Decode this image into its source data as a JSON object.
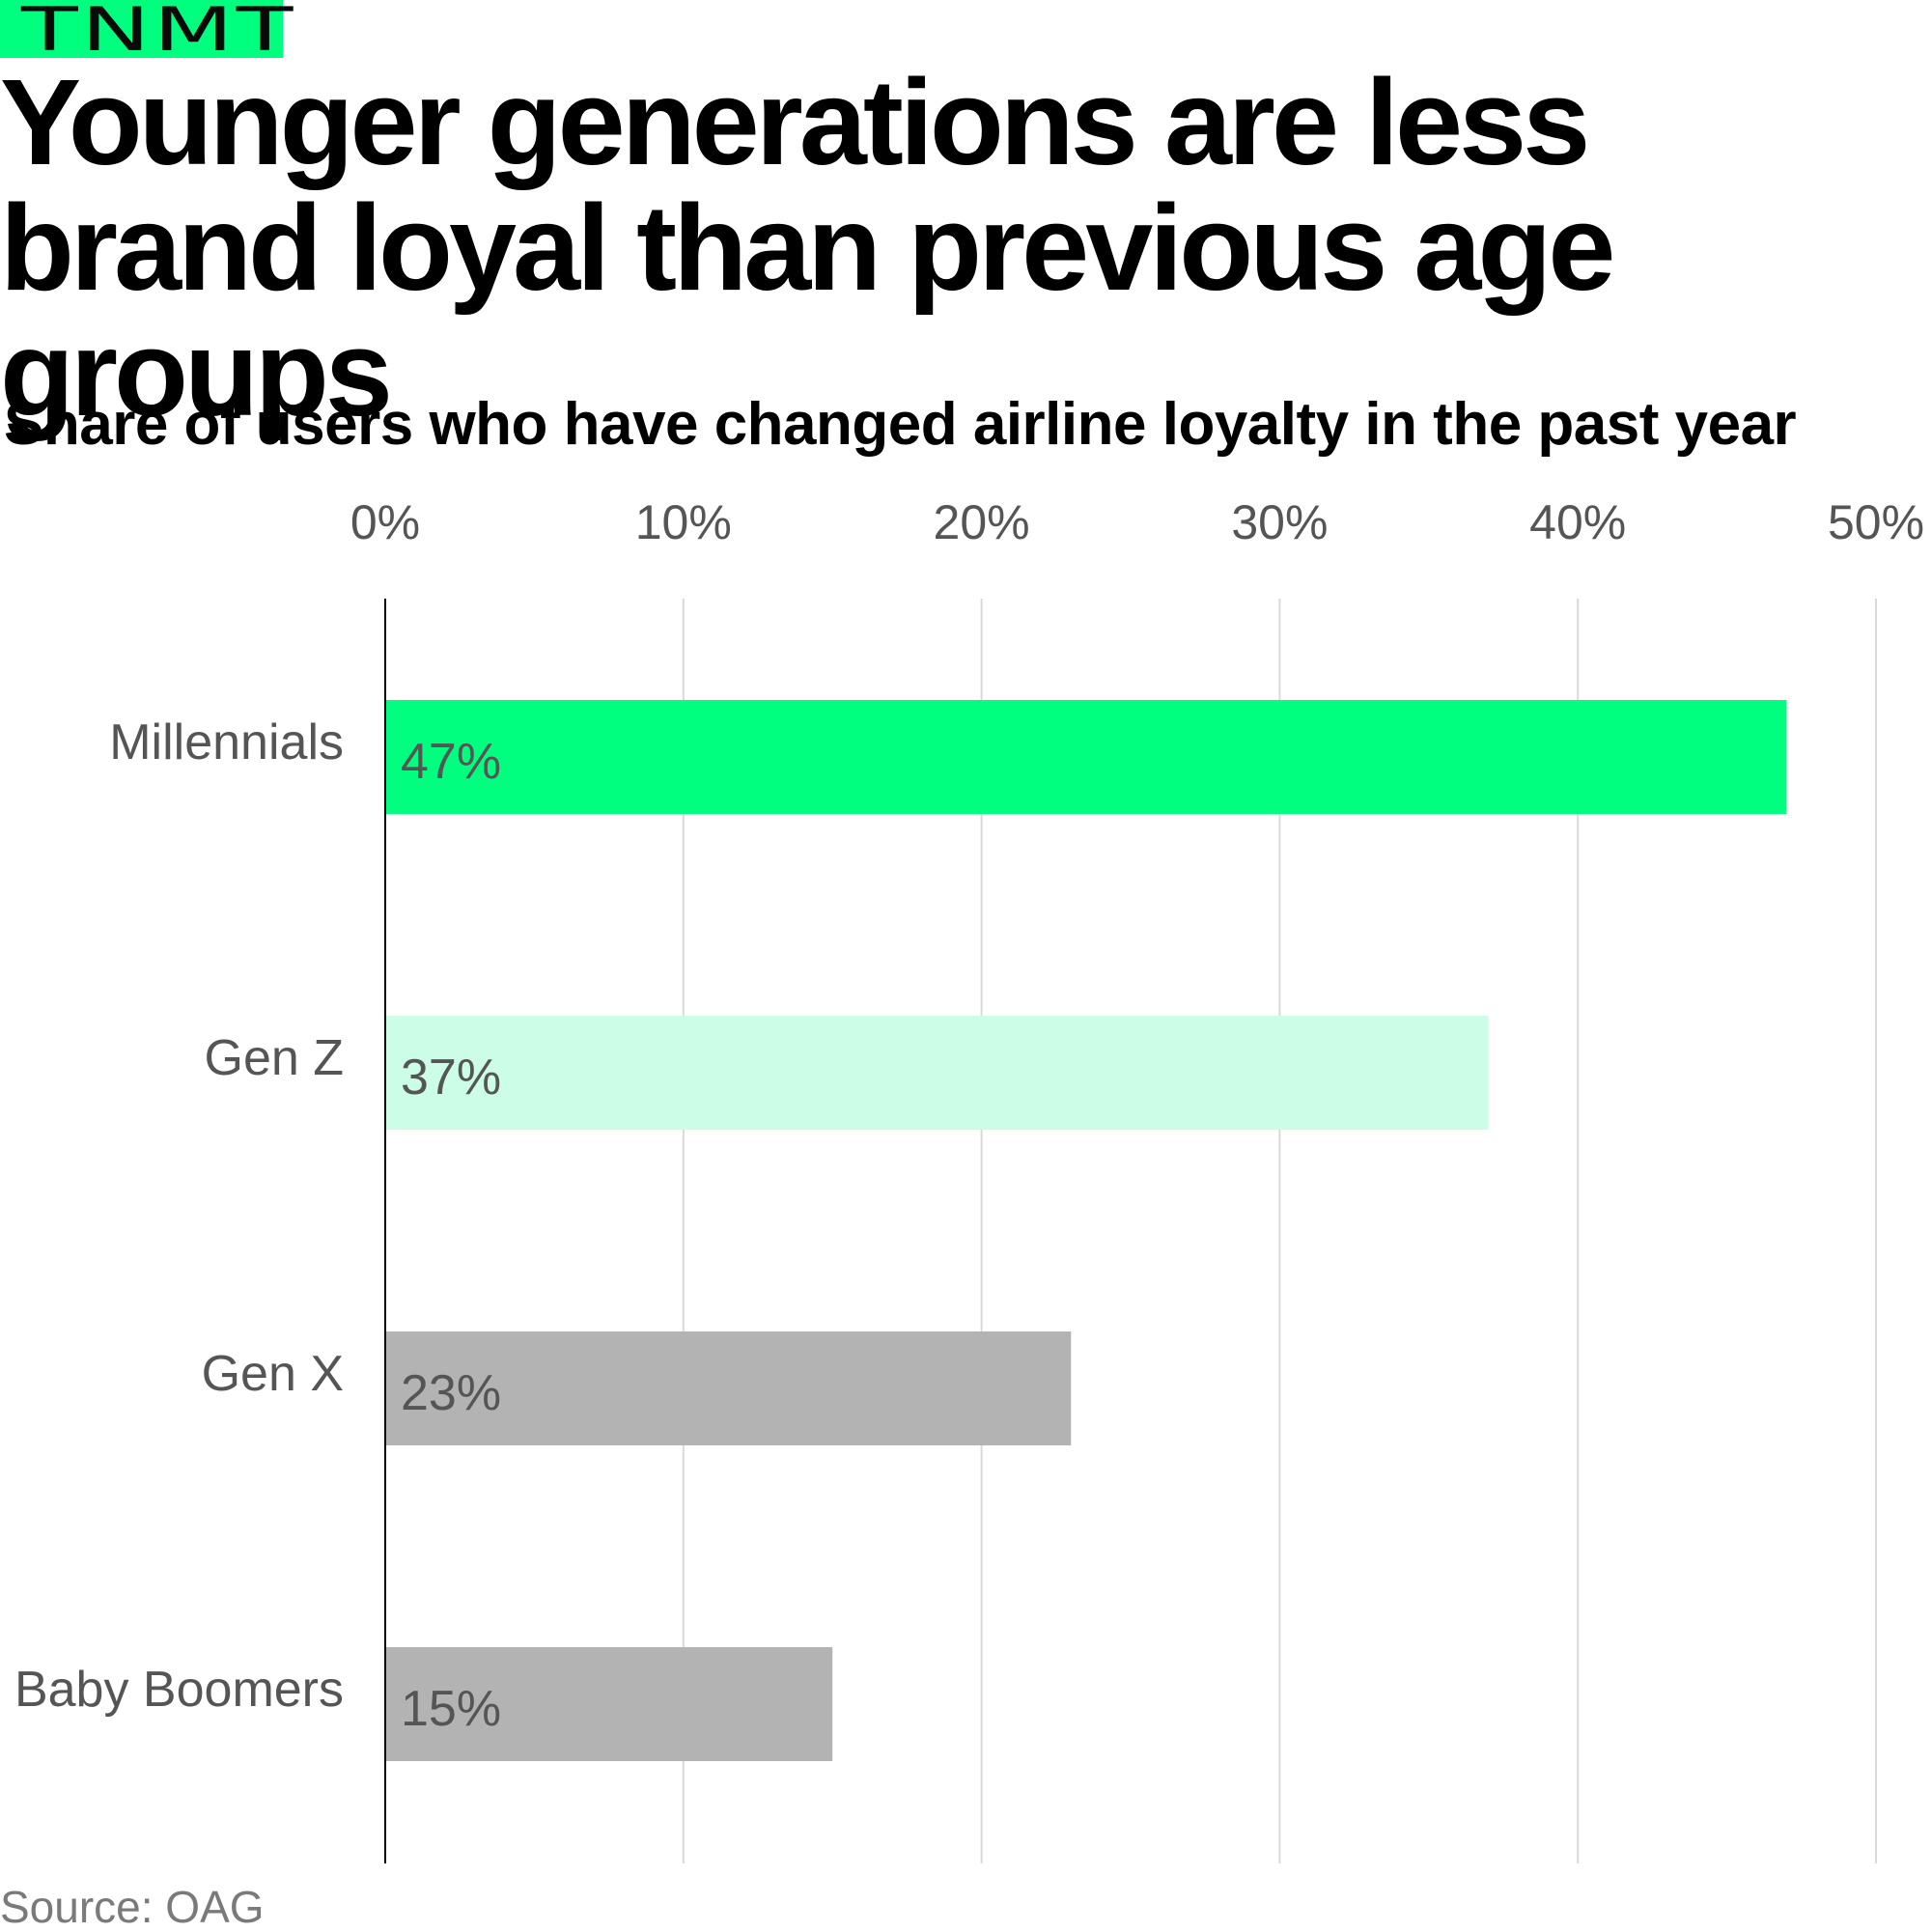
{
  "logo": {
    "text": "TNMT"
  },
  "title": "Younger generations are less brand loyal than previous age groups",
  "subtitle": "Share of users who have changed airline loyalty in the past year",
  "source": "Source: OAG",
  "colors": {
    "highlight": "#00ff7f",
    "secondary": "#ccfde6",
    "muted": "#b3b3b3",
    "axis_text": "#555555",
    "grid": "#d9d9d9"
  },
  "chart_data": {
    "type": "bar",
    "orientation": "horizontal",
    "categories": [
      "Millennials",
      "Gen Z",
      "Gen X",
      "Baby Boomers"
    ],
    "values": [
      47,
      37,
      23,
      15
    ],
    "value_labels": [
      "47%",
      "37%",
      "23%",
      "15%"
    ],
    "bar_colors": [
      "#00ff7f",
      "#ccfde6",
      "#b3b3b3",
      "#b3b3b3"
    ],
    "xlim": [
      0,
      50
    ],
    "xticks": [
      0,
      10,
      20,
      30,
      40,
      50
    ],
    "xtick_labels": [
      "0%",
      "10%",
      "20%",
      "30%",
      "40%",
      "50%"
    ],
    "grid": true,
    "xaxis_position": "top"
  }
}
